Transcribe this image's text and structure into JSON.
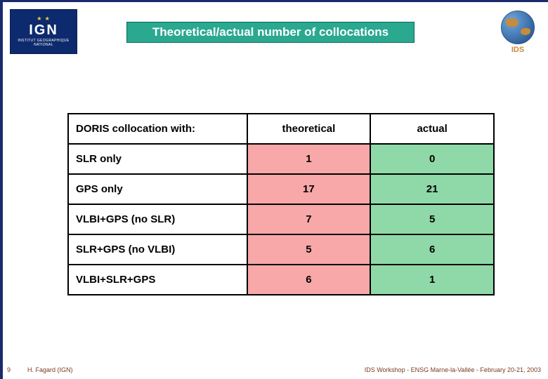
{
  "slide": {
    "title": "Theoretical/actual number of collocations",
    "title_band_bg": "#2aa890",
    "title_band_border": "#0c6a58",
    "title_color": "#ffffff",
    "border_color": "#1a2a6c"
  },
  "logos": {
    "ign": {
      "text": "IGN",
      "subtitle": "INSTITUT GEOGRAPHIQUE NATIONAL"
    },
    "ids": {
      "label": "IDS"
    }
  },
  "table": {
    "columns": [
      "DORIS collocation with:",
      "theoretical",
      "actual"
    ],
    "col_labels_bg": "#ffffff",
    "theoretical_bg": "#f8a8a8",
    "actual_bg": "#8fd9a8",
    "border_color": "#000000",
    "font_size": 15,
    "rows": [
      {
        "label": "SLR only",
        "theoretical": "1",
        "actual": "0"
      },
      {
        "label": "GPS only",
        "theoretical": "17",
        "actual": "21"
      },
      {
        "label": "VLBI+GPS (no SLR)",
        "theoretical": "7",
        "actual": "5"
      },
      {
        "label": "SLR+GPS (no VLBI)",
        "theoretical": "5",
        "actual": "6"
      },
      {
        "label": "VLBI+SLR+GPS",
        "theoretical": "6",
        "actual": "1"
      }
    ]
  },
  "footer": {
    "page_number": "9",
    "author": "H. Fagard (IGN)",
    "event": "IDS Workshop - ENSG Marne-la-Vallée - February 20-21, 2003"
  }
}
